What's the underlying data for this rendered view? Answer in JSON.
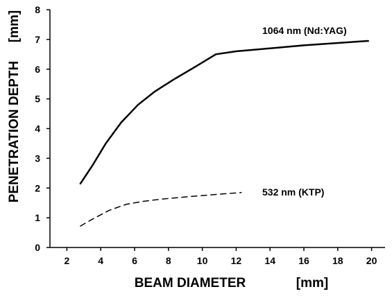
{
  "chart_data": {
    "type": "line",
    "xlabel": "BEAM DIAMETER",
    "xunit": "[mm]",
    "ylabel": "PENETRATION DEPTH",
    "yunit": "[mm]",
    "xlim": [
      1,
      21
    ],
    "ylim": [
      0,
      8
    ],
    "xticks": [
      2,
      4,
      6,
      8,
      10,
      12,
      14,
      16,
      18,
      20
    ],
    "yticks": [
      0,
      1,
      2,
      3,
      4,
      5,
      6,
      7,
      8
    ],
    "grid": false,
    "series": [
      {
        "name": "1064 nm (Nd:YAG)",
        "line_style": "solid",
        "color": "#000000",
        "x": [
          2.8,
          3.5,
          4.3,
          5.2,
          6.2,
          7.2,
          8.3,
          9.5,
          10.8,
          12,
          14,
          16,
          18,
          19.8
        ],
        "y": [
          2.15,
          2.75,
          3.5,
          4.2,
          4.8,
          5.25,
          5.65,
          6.05,
          6.5,
          6.6,
          6.7,
          6.8,
          6.88,
          6.95
        ]
      },
      {
        "name": "532 nm (KTP)",
        "line_style": "dashed",
        "color": "#000000",
        "x": [
          2.8,
          3.5,
          4.5,
          5.5,
          6.5,
          7.5,
          9,
          10.5,
          12.3
        ],
        "y": [
          0.72,
          0.95,
          1.25,
          1.45,
          1.55,
          1.62,
          1.7,
          1.77,
          1.85
        ]
      }
    ]
  }
}
